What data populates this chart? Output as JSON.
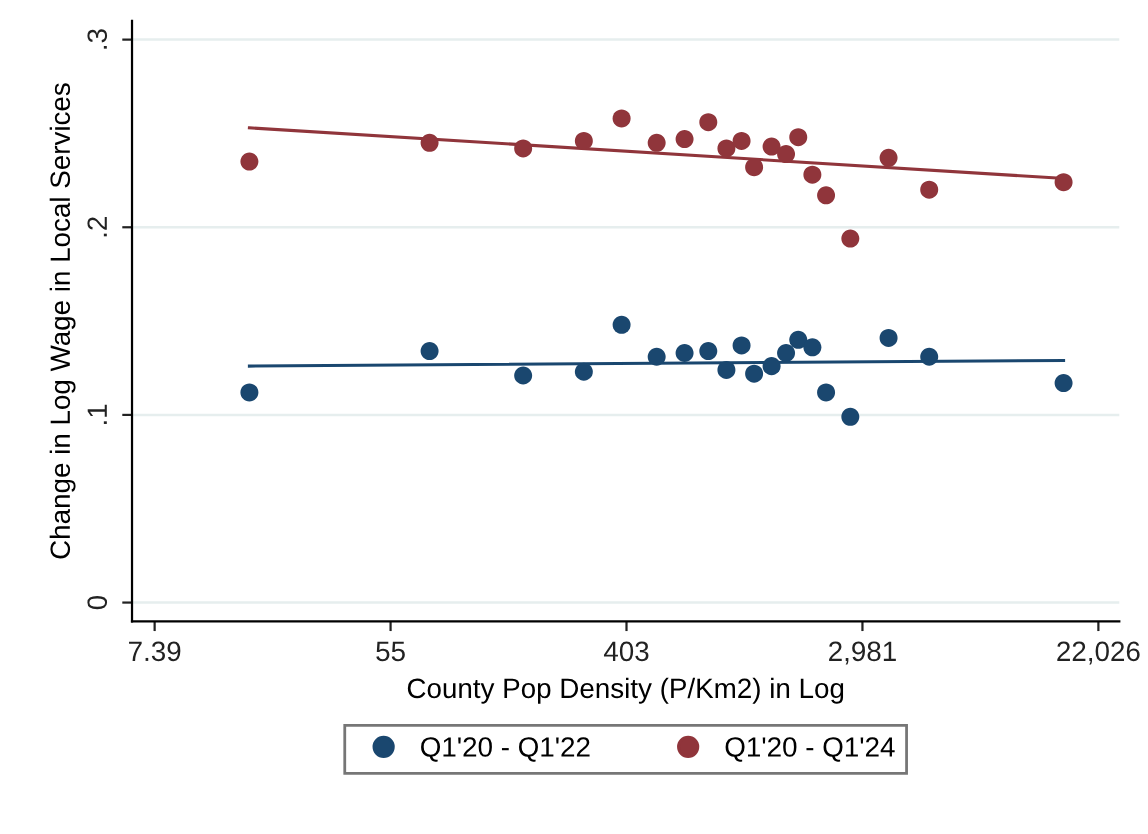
{
  "chart_data": {
    "type": "scatter",
    "xlabel": "County Pop Density (P/Km2) in Log",
    "ylabel": "Change in Log Wage in Local Services",
    "log": "x",
    "xlim": [
      6.1,
      26300
    ],
    "ylim": [
      -0.01,
      0.31
    ],
    "xticks": [
      {
        "value": 7.389,
        "label": "7.39"
      },
      {
        "value": 54.6,
        "label": "55"
      },
      {
        "value": 403.4,
        "label": "403"
      },
      {
        "value": 2981,
        "label": "2,981"
      },
      {
        "value": 22026,
        "label": "22,026"
      }
    ],
    "yticks": [
      {
        "value": 0,
        "label": "0"
      },
      {
        "value": 0.1,
        "label": ".1"
      },
      {
        "value": 0.2,
        "label": ".2"
      },
      {
        "value": 0.3,
        "label": ".3"
      }
    ],
    "grid": "y",
    "legend": "bottom",
    "marker": "circle",
    "series": [
      {
        "name": "Q1'20 - Q1'22",
        "color": "#1a476f",
        "x": [
          16.5,
          76,
          168,
          281,
          387,
          521,
          660,
          807,
          941,
          1070,
          1190,
          1380,
          1560,
          1730,
          1950,
          2190,
          2690,
          3720,
          5250,
          16400
        ],
        "values": [
          0.112,
          0.134,
          0.121,
          0.123,
          0.148,
          0.131,
          0.133,
          0.134,
          0.124,
          0.137,
          0.122,
          0.126,
          0.133,
          0.14,
          0.136,
          0.112,
          0.099,
          0.141,
          0.131,
          0.117
        ]
      },
      {
        "name": "Q1'20 - Q1'24",
        "color": "#90353b",
        "x": [
          16.5,
          76,
          168,
          281,
          387,
          521,
          660,
          807,
          941,
          1070,
          1190,
          1380,
          1560,
          1730,
          1950,
          2190,
          2690,
          3720,
          5250,
          16400
        ],
        "values": [
          0.235,
          0.245,
          0.242,
          0.246,
          0.258,
          0.245,
          0.247,
          0.256,
          0.242,
          0.246,
          0.232,
          0.243,
          0.239,
          0.248,
          0.228,
          0.217,
          0.194,
          0.237,
          0.22,
          0.224
        ]
      },
      {
        "type": "line",
        "marker": "none",
        "color": "#1a476f",
        "x": [
          16.5,
          16400
        ],
        "values": [
          0.126,
          0.129
        ]
      },
      {
        "type": "line",
        "marker": "none",
        "color": "#90353b",
        "x": [
          16.5,
          16400
        ],
        "values": [
          0.253,
          0.226
        ]
      }
    ]
  }
}
